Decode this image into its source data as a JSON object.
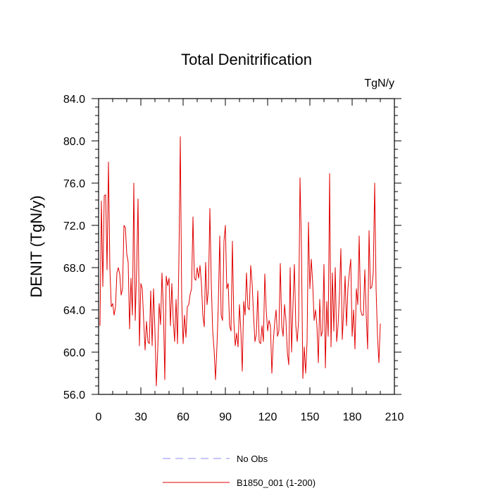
{
  "chart_data": {
    "type": "line",
    "title": "Total Denitrification",
    "units_label": "TgN/y",
    "ylabel": "DENIT  (TgN/y)",
    "xlabel": "",
    "xlim": [
      0,
      210
    ],
    "ylim": [
      56,
      84
    ],
    "xticks": [
      0,
      30,
      60,
      90,
      120,
      150,
      180,
      210
    ],
    "xtick_labels": [
      "0",
      "30",
      "60",
      "90",
      "120",
      "150",
      "180",
      "210"
    ],
    "yticks": [
      56,
      60,
      64,
      68,
      72,
      76,
      80,
      84
    ],
    "ytick_labels": [
      "56.0",
      "60.0",
      "64.0",
      "68.0",
      "72.0",
      "76.0",
      "80.0",
      "84.0"
    ],
    "grid": false,
    "legend": {
      "position": "bottom-center",
      "entries": [
        {
          "label": "No Obs",
          "style": "dashed",
          "color": "#8c8cff"
        },
        {
          "label": "B1850_001 (1-200)",
          "style": "solid",
          "color": "#e00000"
        }
      ]
    },
    "series": [
      {
        "name": "B1850_001 (1-200)",
        "color": "#e00000",
        "x_start": 1,
        "values": [
          62.5,
          74.3,
          66.2,
          74.8,
          74.9,
          67.8,
          78.0,
          68.0,
          64.3,
          64.6,
          63.5,
          64.3,
          67.5,
          68.0,
          67.4,
          65.4,
          66.0,
          72.0,
          71.8,
          69.3,
          68.5,
          62.2,
          67.0,
          63.5,
          76.0,
          63.0,
          67.8,
          74.5,
          60.6,
          66.5,
          66.0,
          63.0,
          60.2,
          62.9,
          61.0,
          60.8,
          65.8,
          60.6,
          66.0,
          62.0,
          56.8,
          60.3,
          64.6,
          62.6,
          67.5,
          64.0,
          57.4,
          67.2,
          66.3,
          67.0,
          62.5,
          66.5,
          63.0,
          61.0,
          65.0,
          60.8,
          68.5,
          80.4,
          65.0,
          60.8,
          63.5,
          61.4,
          64.3,
          64.5,
          65.5,
          66.0,
          72.8,
          67.0,
          66.8,
          68.0,
          67.0,
          68.2,
          66.5,
          63.5,
          62.4,
          68.5,
          64.5,
          66.0,
          73.6,
          66.5,
          62.0,
          60.2,
          57.4,
          60.5,
          64.5,
          71.0,
          63.5,
          63.0,
          70.5,
          72.0,
          66.0,
          66.5,
          62.5,
          62.0,
          70.5,
          63.0,
          60.6,
          61.8,
          60.5,
          64.5,
          62.0,
          58.2,
          64.8,
          63.5,
          67.5,
          64.2,
          64.0,
          68.2,
          66.5,
          63.5,
          61.0,
          61.7,
          65.8,
          61.0,
          60.8,
          62.5,
          61.0,
          67.4,
          64.0,
          62.0,
          63.0,
          62.5,
          58.0,
          61.0,
          62.8,
          64.0,
          61.5,
          62.0,
          68.4,
          62.5,
          61.5,
          64.5,
          63.0,
          60.0,
          58.8,
          68.0,
          60.0,
          64.5,
          68.3,
          62.5,
          61.0,
          63.0,
          76.5,
          70.0,
          57.5,
          60.5,
          58.0,
          61.0,
          72.3,
          66.0,
          68.8,
          66.5,
          63.0,
          64.0,
          62.5,
          59.0,
          65.0,
          61.5,
          62.0,
          68.3,
          58.5,
          64.8,
          61.5,
          76.9,
          60.5,
          67.5,
          62.0,
          68.0,
          61.0,
          62.5,
          65.5,
          69.8,
          61.2,
          64.0,
          67.2,
          62.5,
          66.0,
          67.5,
          68.8,
          61.5,
          64.0,
          60.3,
          66.0,
          64.5,
          71.0,
          64.0,
          63.5,
          63.5,
          67.8,
          63.5,
          60.3,
          71.5,
          66.0,
          66.2,
          67.5,
          76.0,
          66.0,
          61.5,
          59.0,
          62.7
        ]
      }
    ]
  }
}
